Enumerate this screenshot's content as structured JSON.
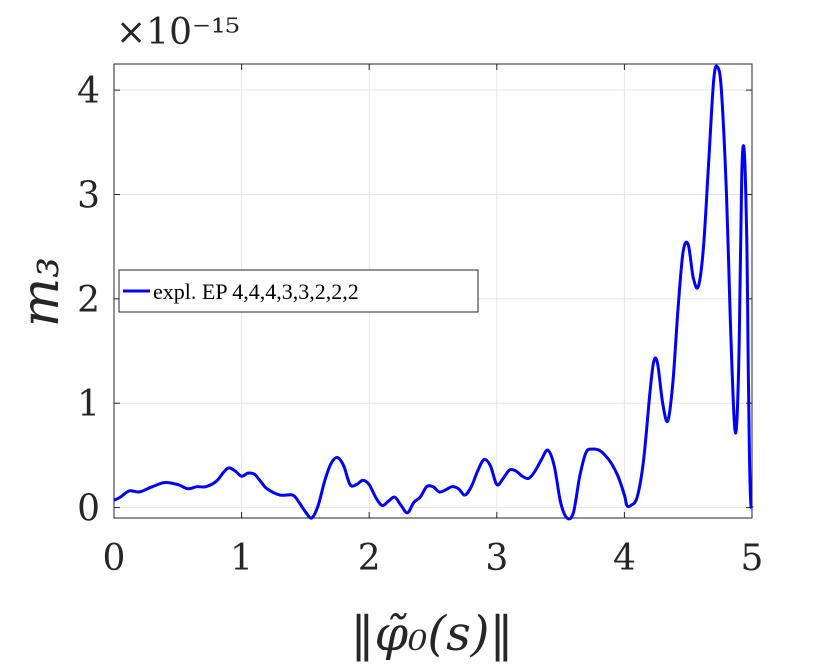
{
  "chart_data": {
    "type": "line",
    "xlabel": "‖φ̃₀(s)‖",
    "ylabel": "m₃",
    "exponent_label": "×10⁻¹⁵",
    "xlim": [
      0,
      5
    ],
    "ylim": [
      -0.1,
      4.25
    ],
    "x_ticks": [
      "0",
      "1",
      "2",
      "3",
      "4",
      "5"
    ],
    "y_ticks": [
      "0",
      "1",
      "2",
      "3",
      "4"
    ],
    "grid": true,
    "legend_position": "middle-left",
    "series": [
      {
        "name": "expl. EP 4,4,4,3,3,2,2,2",
        "color": "#0000ff",
        "x": [
          0,
          0.05,
          0.12,
          0.2,
          0.3,
          0.4,
          0.5,
          0.58,
          0.65,
          0.72,
          0.8,
          0.86,
          0.9,
          0.95,
          1.0,
          1.05,
          1.1,
          1.15,
          1.2,
          1.3,
          1.4,
          1.45,
          1.5,
          1.55,
          1.6,
          1.65,
          1.7,
          1.75,
          1.8,
          1.85,
          1.9,
          1.95,
          2.0,
          2.05,
          2.1,
          2.15,
          2.2,
          2.25,
          2.3,
          2.35,
          2.4,
          2.45,
          2.5,
          2.55,
          2.6,
          2.65,
          2.7,
          2.75,
          2.8,
          2.85,
          2.9,
          2.95,
          3.0,
          3.05,
          3.1,
          3.15,
          3.2,
          3.25,
          3.3,
          3.35,
          3.4,
          3.45,
          3.5,
          3.55,
          3.6,
          3.65,
          3.7,
          3.75,
          3.8,
          3.85,
          3.9,
          3.95,
          4.0,
          4.02,
          4.05,
          4.1,
          4.15,
          4.2,
          4.23,
          4.26,
          4.3,
          4.34,
          4.38,
          4.42,
          4.46,
          4.5,
          4.54,
          4.58,
          4.62,
          4.66,
          4.7,
          4.73,
          4.76,
          4.8,
          4.83,
          4.86,
          4.88,
          4.9,
          4.92,
          4.94,
          4.96,
          4.97,
          4.98,
          4.99,
          5.0
        ],
        "y": [
          0.07,
          0.1,
          0.16,
          0.15,
          0.2,
          0.24,
          0.22,
          0.18,
          0.2,
          0.2,
          0.25,
          0.34,
          0.38,
          0.35,
          0.3,
          0.33,
          0.32,
          0.25,
          0.18,
          0.12,
          0.12,
          0.05,
          -0.04,
          -0.1,
          0.02,
          0.25,
          0.42,
          0.48,
          0.4,
          0.22,
          0.22,
          0.26,
          0.22,
          0.1,
          0.02,
          0.06,
          0.1,
          0.02,
          -0.05,
          0.05,
          0.1,
          0.2,
          0.2,
          0.15,
          0.17,
          0.2,
          0.18,
          0.12,
          0.2,
          0.35,
          0.46,
          0.4,
          0.22,
          0.28,
          0.36,
          0.35,
          0.3,
          0.28,
          0.35,
          0.46,
          0.55,
          0.4,
          0.05,
          -0.1,
          -0.05,
          0.3,
          0.53,
          0.56,
          0.55,
          0.5,
          0.42,
          0.3,
          0.12,
          0.02,
          0.02,
          0.1,
          0.45,
          1.1,
          1.4,
          1.38,
          1.0,
          0.83,
          1.2,
          1.9,
          2.45,
          2.52,
          2.2,
          2.12,
          2.5,
          3.3,
          4.1,
          4.22,
          4.0,
          3.0,
          1.8,
          0.85,
          0.8,
          1.6,
          3.2,
          3.4,
          2.5,
          1.4,
          0.5,
          0.05,
          0.0
        ]
      }
    ]
  }
}
